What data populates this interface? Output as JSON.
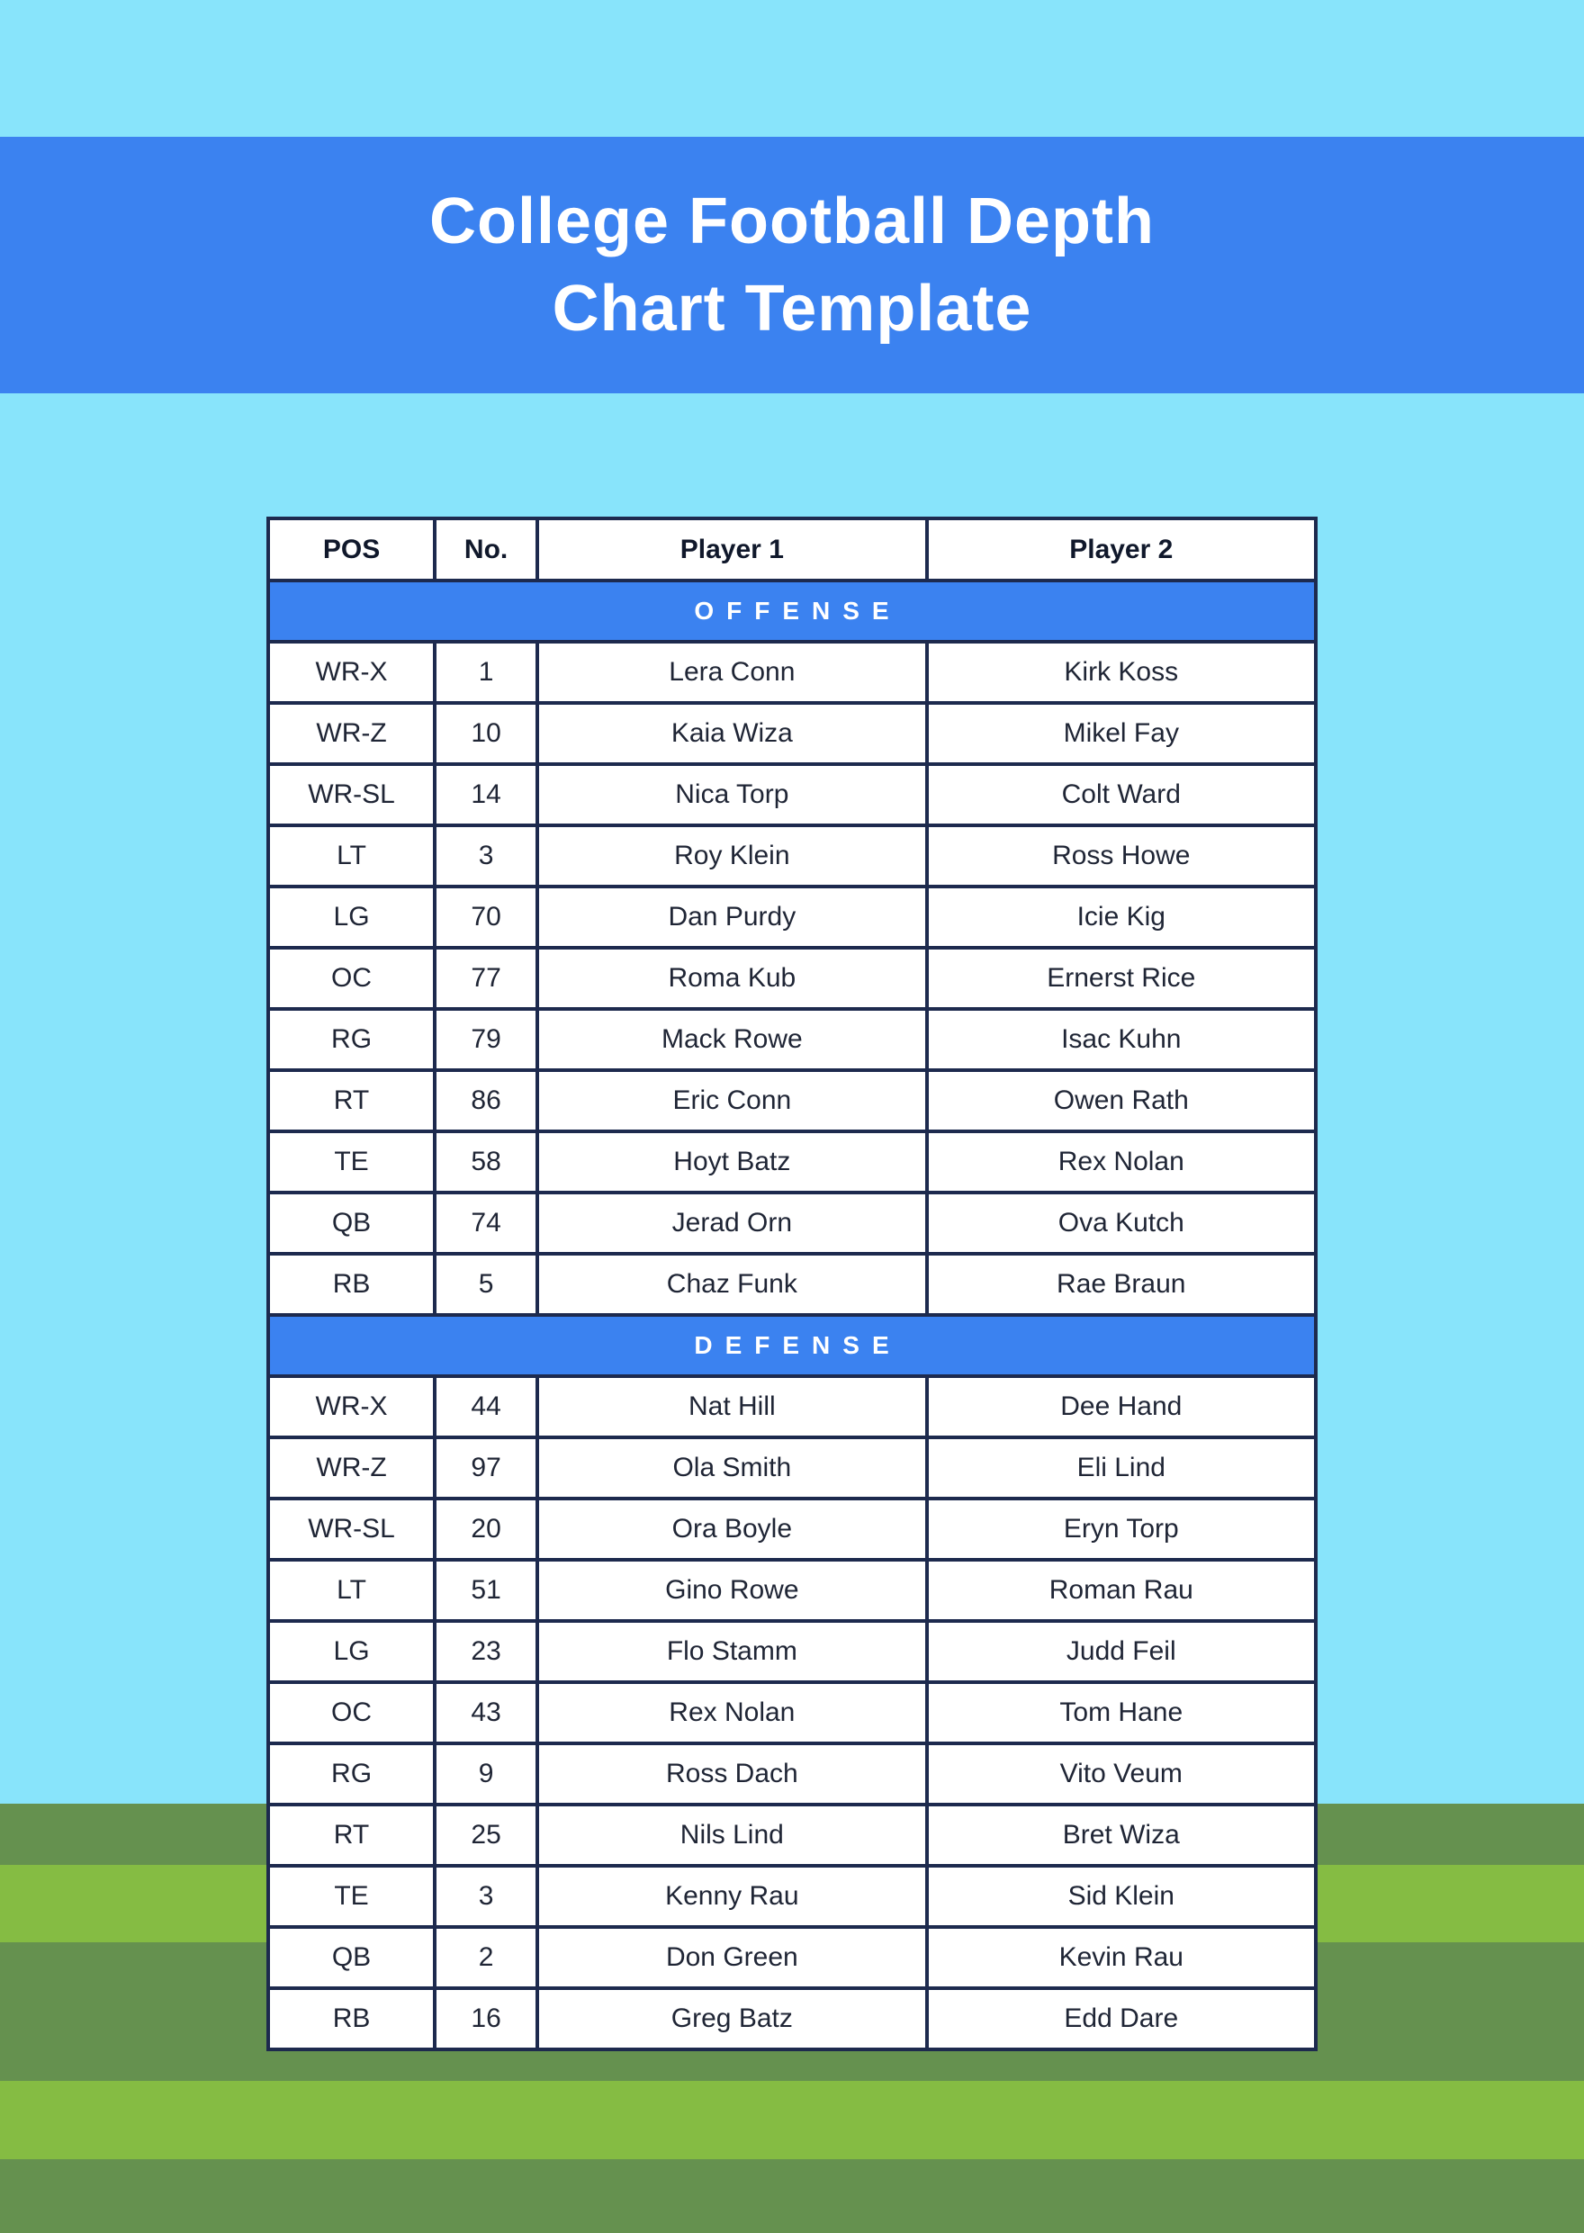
{
  "header": {
    "title_lines": [
      "College Football Depth",
      "Chart Template"
    ],
    "title_full": "College Football Depth Chart Template"
  },
  "table": {
    "columns": [
      "POS",
      "No.",
      "Player 1",
      "Player 2"
    ],
    "sections": [
      {
        "label": "OFFENSE",
        "rows": [
          [
            "WR-X",
            "1",
            "Lera Conn",
            "Kirk Koss"
          ],
          [
            "WR-Z",
            "10",
            "Kaia Wiza",
            "Mikel Fay"
          ],
          [
            "WR-SL",
            "14",
            "Nica Torp",
            "Colt Ward"
          ],
          [
            "LT",
            "3",
            "Roy Klein",
            "Ross Howe"
          ],
          [
            "LG",
            "70",
            "Dan Purdy",
            "Icie Kig"
          ],
          [
            "OC",
            "77",
            "Roma Kub",
            "Ernerst Rice"
          ],
          [
            "RG",
            "79",
            "Mack Rowe",
            "Isac Kuhn"
          ],
          [
            "RT",
            "86",
            "Eric Conn",
            "Owen Rath"
          ],
          [
            "TE",
            "58",
            "Hoyt Batz",
            "Rex Nolan"
          ],
          [
            "QB",
            "74",
            "Jerad Orn",
            "Ova Kutch"
          ],
          [
            "RB",
            "5",
            "Chaz Funk",
            "Rae Braun"
          ]
        ]
      },
      {
        "label": "DEFENSE",
        "rows": [
          [
            "WR-X",
            "44",
            "Nat Hill",
            "Dee Hand"
          ],
          [
            "WR-Z",
            "97",
            "Ola Smith",
            "Eli Lind"
          ],
          [
            "WR-SL",
            "20",
            "Ora Boyle",
            "Eryn Torp"
          ],
          [
            "LT",
            "51",
            "Gino Rowe",
            "Roman Rau"
          ],
          [
            "LG",
            "23",
            "Flo Stamm",
            "Judd Feil"
          ],
          [
            "OC",
            "43",
            "Rex Nolan",
            "Tom Hane"
          ],
          [
            "RG",
            "9",
            "Ross Dach",
            "Vito Veum"
          ],
          [
            "RT",
            "25",
            "Nils Lind",
            "Bret Wiza"
          ],
          [
            "TE",
            "3",
            "Kenny Rau",
            "Sid Klein"
          ],
          [
            "QB",
            "2",
            "Don Green",
            "Kevin Rau"
          ],
          [
            "RB",
            "16",
            "Greg Batz",
            "Edd Dare"
          ]
        ]
      }
    ]
  },
  "colors": {
    "sky_background": "#88e4fb",
    "banner_blue": "#3b82f0",
    "table_border_navy": "#1d2a4e",
    "cell_text": "#1f2535",
    "field_green_dark": "#65914f",
    "field_green_light": "#85bc43",
    "cell_background": "#ffffff",
    "title_text": "#ffffff"
  }
}
